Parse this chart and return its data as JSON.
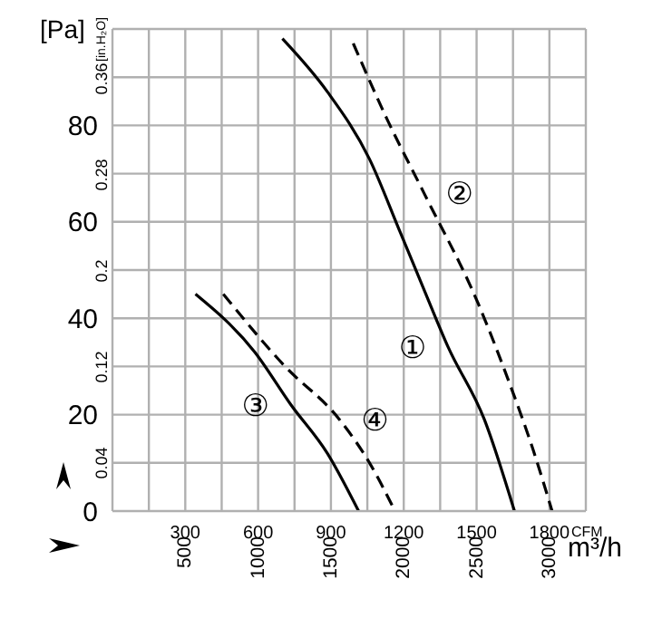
{
  "chart_data": {
    "type": "line",
    "xlabel": "CFM",
    "x2label": "m³/h",
    "ylabel": "[Pa]",
    "y2label": "[in.H₂O]",
    "xlim": [
      0,
      1950
    ],
    "xticks": [
      {
        "value": 150,
        "label": null
      },
      300,
      {
        "value": 450,
        "label": null
      },
      600,
      {
        "value": 750,
        "label": null
      },
      900,
      {
        "value": 1050,
        "label": null
      },
      1200,
      {
        "value": 1350,
        "label": null
      },
      1500,
      {
        "value": 1650,
        "label": null
      },
      1800,
      {
        "value": 1950,
        "label": null
      }
    ],
    "x2lim": [
      0,
      3250
    ],
    "x2ticks": [
      500,
      1000,
      1500,
      2000,
      2500,
      3000
    ],
    "ylim": [
      0,
      100
    ],
    "yticks": [
      0,
      {
        "value": 10,
        "label": null
      },
      20,
      {
        "value": 30,
        "label": null
      },
      40,
      {
        "value": 50,
        "label": null
      },
      60,
      {
        "value": 70,
        "label": null
      },
      80,
      {
        "value": 90,
        "label": null
      },
      {
        "value": 100,
        "label": null
      }
    ],
    "y2lim": [
      0,
      0.4015
    ],
    "y2ticks": [
      0.04,
      0.12,
      0.2,
      0.28,
      0.36
    ],
    "grid": true,
    "legend": false,
    "marker": "none",
    "series": [
      {
        "color": "#000000",
        "line_style": "solid",
        "x": [
          700,
          885,
          1059,
          1184,
          1283,
          1383,
          1532,
          1656
        ],
        "values": [
          98,
          87,
          73,
          58,
          46,
          34,
          19,
          0
        ]
      },
      {
        "color": "#000000",
        "line_style": "dashed",
        "x": [
          992,
          1134,
          1283,
          1507,
          1632,
          1731,
          1811
        ],
        "values": [
          97,
          81,
          66,
          43,
          27,
          13,
          0
        ]
      },
      {
        "color": "#000000",
        "line_style": "solid",
        "x": [
          342,
          586,
          736,
          885,
          1014
        ],
        "values": [
          45,
          33,
          22,
          12,
          0
        ]
      },
      {
        "color": "#000000",
        "line_style": "dashed",
        "x": [
          457,
          711,
          935,
          1059,
          1164
        ],
        "values": [
          45,
          30,
          19,
          10,
          0
        ]
      }
    ],
    "annotations": [
      {
        "text": "①",
        "x": 1383,
        "y": 34
      },
      {
        "text": "②",
        "x": 1283,
        "y": 66
      },
      {
        "text": "③",
        "x": 736,
        "y": 22
      },
      {
        "text": "④",
        "x": 935,
        "y": 19
      }
    ]
  }
}
